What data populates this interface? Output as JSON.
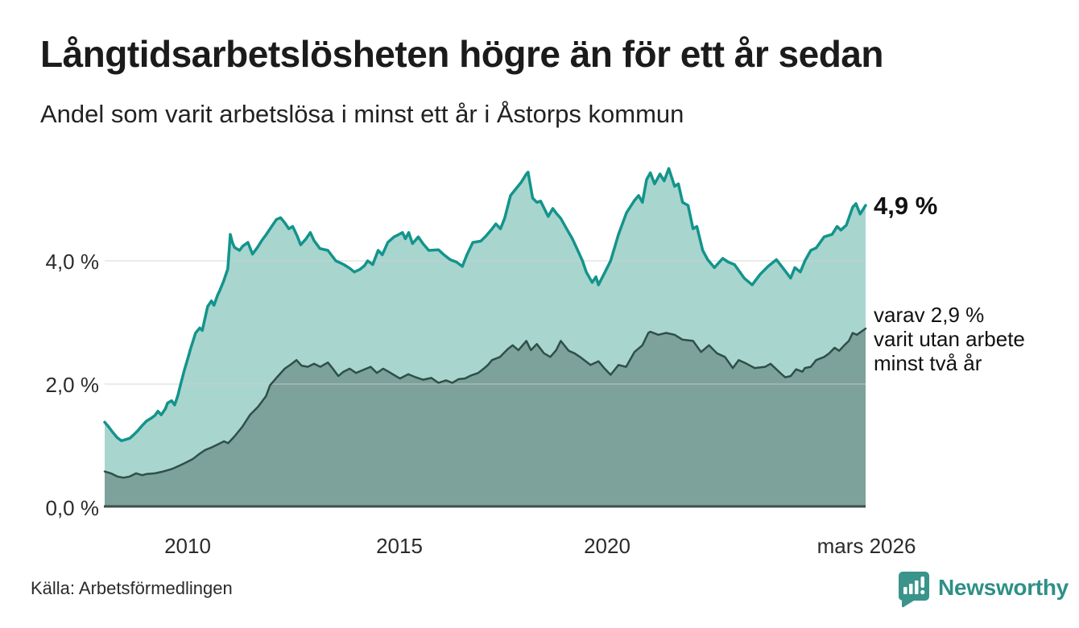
{
  "header": {
    "title": "Långtidsarbetslösheten högre än för ett år sedan",
    "subtitle": "Andel som varit arbetslösa i minst ett år i Åstorps kommun"
  },
  "chart_data": {
    "type": "area",
    "title": "Långtidsarbetslösheten högre än för ett år sedan",
    "subtitle": "Andel som varit arbetslösa i minst ett år i Åstorps kommun",
    "unit": "%",
    "x_range": [
      2008.0,
      2026.17
    ],
    "y_range": [
      0,
      5.8
    ],
    "grid_on": true,
    "grid_color": "#cfcfcf",
    "baseline_color": "#3e4e4a",
    "y_ticks": [
      {
        "label": "0,0 %",
        "value": 0
      },
      {
        "label": "2,0 %",
        "value": 2
      },
      {
        "label": "4,0 %",
        "value": 4
      }
    ],
    "x_ticks": [
      {
        "label": "2010",
        "value": 2010
      },
      {
        "label": "2015",
        "value": 2015
      },
      {
        "label": "2020",
        "value": 2020
      },
      {
        "label": "mars 2026",
        "value": 2026.17
      }
    ],
    "annotations": {
      "primary": {
        "text": "4,9 %"
      },
      "secondary": {
        "lines": [
          "varav 2,9 %",
          "varit utan arbete",
          "minst två år"
        ]
      }
    },
    "series": [
      {
        "name": "Andel arbetslösa minst ett år",
        "end_value": "4,9 %",
        "fill": "#a9d5cf",
        "stroke": "#13948b",
        "stroke_width": 3.5,
        "points": [
          [
            2008.0,
            1.38
          ],
          [
            2008.1,
            1.3
          ],
          [
            2008.2,
            1.21
          ],
          [
            2008.3,
            1.13
          ],
          [
            2008.4,
            1.08
          ],
          [
            2008.5,
            1.1
          ],
          [
            2008.6,
            1.12
          ],
          [
            2008.7,
            1.18
          ],
          [
            2008.8,
            1.25
          ],
          [
            2008.9,
            1.33
          ],
          [
            2009.0,
            1.4
          ],
          [
            2009.1,
            1.44
          ],
          [
            2009.2,
            1.49
          ],
          [
            2009.27,
            1.56
          ],
          [
            2009.35,
            1.5
          ],
          [
            2009.45,
            1.6
          ],
          [
            2009.5,
            1.69
          ],
          [
            2009.6,
            1.73
          ],
          [
            2009.67,
            1.66
          ],
          [
            2009.75,
            1.82
          ],
          [
            2009.8,
            1.96
          ],
          [
            2009.9,
            2.22
          ],
          [
            2010.0,
            2.45
          ],
          [
            2010.05,
            2.57
          ],
          [
            2010.17,
            2.83
          ],
          [
            2010.27,
            2.91
          ],
          [
            2010.33,
            2.87
          ],
          [
            2010.46,
            3.26
          ],
          [
            2010.55,
            3.35
          ],
          [
            2010.61,
            3.28
          ],
          [
            2010.7,
            3.45
          ],
          [
            2010.75,
            3.52
          ],
          [
            2010.84,
            3.67
          ],
          [
            2010.94,
            3.87
          ],
          [
            2011.0,
            4.43
          ],
          [
            2011.05,
            4.3
          ],
          [
            2011.1,
            4.22
          ],
          [
            2011.22,
            4.17
          ],
          [
            2011.3,
            4.24
          ],
          [
            2011.42,
            4.3
          ],
          [
            2011.53,
            4.11
          ],
          [
            2011.65,
            4.22
          ],
          [
            2011.76,
            4.34
          ],
          [
            2011.85,
            4.42
          ],
          [
            2011.95,
            4.52
          ],
          [
            2012.1,
            4.67
          ],
          [
            2012.2,
            4.7
          ],
          [
            2012.3,
            4.62
          ],
          [
            2012.4,
            4.52
          ],
          [
            2012.49,
            4.56
          ],
          [
            2012.6,
            4.4
          ],
          [
            2012.68,
            4.26
          ],
          [
            2012.8,
            4.35
          ],
          [
            2012.91,
            4.46
          ],
          [
            2013.0,
            4.33
          ],
          [
            2013.14,
            4.2
          ],
          [
            2013.33,
            4.17
          ],
          [
            2013.52,
            4.0
          ],
          [
            2013.71,
            3.94
          ],
          [
            2013.85,
            3.88
          ],
          [
            2013.96,
            3.82
          ],
          [
            2014.09,
            3.86
          ],
          [
            2014.2,
            3.92
          ],
          [
            2014.28,
            4.0
          ],
          [
            2014.4,
            3.94
          ],
          [
            2014.53,
            4.17
          ],
          [
            2014.63,
            4.1
          ],
          [
            2014.76,
            4.3
          ],
          [
            2014.91,
            4.39
          ],
          [
            2015.0,
            4.42
          ],
          [
            2015.11,
            4.46
          ],
          [
            2015.18,
            4.36
          ],
          [
            2015.26,
            4.46
          ],
          [
            2015.35,
            4.28
          ],
          [
            2015.49,
            4.39
          ],
          [
            2015.6,
            4.28
          ],
          [
            2015.74,
            4.17
          ],
          [
            2015.97,
            4.18
          ],
          [
            2016.1,
            4.1
          ],
          [
            2016.25,
            4.02
          ],
          [
            2016.4,
            3.98
          ],
          [
            2016.54,
            3.91
          ],
          [
            2016.65,
            4.1
          ],
          [
            2016.79,
            4.3
          ],
          [
            2016.98,
            4.32
          ],
          [
            2017.1,
            4.4
          ],
          [
            2017.25,
            4.52
          ],
          [
            2017.34,
            4.6
          ],
          [
            2017.45,
            4.52
          ],
          [
            2017.55,
            4.69
          ],
          [
            2017.69,
            5.06
          ],
          [
            2017.82,
            5.17
          ],
          [
            2017.95,
            5.28
          ],
          [
            2018.07,
            5.41
          ],
          [
            2018.11,
            5.44
          ],
          [
            2018.22,
            5.02
          ],
          [
            2018.32,
            4.95
          ],
          [
            2018.41,
            4.97
          ],
          [
            2018.59,
            4.72
          ],
          [
            2018.7,
            4.85
          ],
          [
            2018.8,
            4.76
          ],
          [
            2018.89,
            4.69
          ],
          [
            2019.03,
            4.52
          ],
          [
            2019.16,
            4.37
          ],
          [
            2019.27,
            4.21
          ],
          [
            2019.41,
            4.0
          ],
          [
            2019.5,
            3.82
          ],
          [
            2019.64,
            3.65
          ],
          [
            2019.73,
            3.74
          ],
          [
            2019.79,
            3.61
          ],
          [
            2019.92,
            3.78
          ],
          [
            2020.08,
            4.0
          ],
          [
            2020.27,
            4.43
          ],
          [
            2020.46,
            4.78
          ],
          [
            2020.65,
            4.98
          ],
          [
            2020.75,
            5.06
          ],
          [
            2020.84,
            4.95
          ],
          [
            2020.94,
            5.32
          ],
          [
            2021.03,
            5.43
          ],
          [
            2021.13,
            5.25
          ],
          [
            2021.26,
            5.41
          ],
          [
            2021.36,
            5.3
          ],
          [
            2021.47,
            5.5
          ],
          [
            2021.61,
            5.21
          ],
          [
            2021.7,
            5.25
          ],
          [
            2021.8,
            4.95
          ],
          [
            2021.93,
            4.9
          ],
          [
            2022.05,
            4.52
          ],
          [
            2022.14,
            4.56
          ],
          [
            2022.28,
            4.17
          ],
          [
            2022.4,
            4.02
          ],
          [
            2022.56,
            3.89
          ],
          [
            2022.76,
            4.04
          ],
          [
            2022.89,
            3.98
          ],
          [
            2023.04,
            3.94
          ],
          [
            2023.27,
            3.72
          ],
          [
            2023.46,
            3.61
          ],
          [
            2023.65,
            3.78
          ],
          [
            2023.84,
            3.91
          ],
          [
            2024.04,
            4.02
          ],
          [
            2024.19,
            3.89
          ],
          [
            2024.38,
            3.72
          ],
          [
            2024.48,
            3.89
          ],
          [
            2024.61,
            3.82
          ],
          [
            2024.72,
            4.0
          ],
          [
            2024.86,
            4.17
          ],
          [
            2024.99,
            4.21
          ],
          [
            2025.18,
            4.39
          ],
          [
            2025.37,
            4.43
          ],
          [
            2025.49,
            4.56
          ],
          [
            2025.58,
            4.5
          ],
          [
            2025.71,
            4.58
          ],
          [
            2025.86,
            4.87
          ],
          [
            2025.94,
            4.93
          ],
          [
            2026.04,
            4.76
          ],
          [
            2026.17,
            4.9
          ]
        ]
      },
      {
        "name": "Varav utan arbete minst två år",
        "end_value": "2,9 %",
        "fill": "#7da19b",
        "stroke": "#2e5049",
        "stroke_width": 2.5,
        "points": [
          [
            2008.0,
            0.58
          ],
          [
            2008.15,
            0.55
          ],
          [
            2008.3,
            0.5
          ],
          [
            2008.45,
            0.48
          ],
          [
            2008.6,
            0.5
          ],
          [
            2008.75,
            0.55
          ],
          [
            2008.9,
            0.52
          ],
          [
            2009.0,
            0.54
          ],
          [
            2009.2,
            0.55
          ],
          [
            2009.4,
            0.58
          ],
          [
            2009.6,
            0.62
          ],
          [
            2009.8,
            0.68
          ],
          [
            2009.95,
            0.73
          ],
          [
            2010.1,
            0.78
          ],
          [
            2010.25,
            0.86
          ],
          [
            2010.4,
            0.93
          ],
          [
            2010.55,
            0.97
          ],
          [
            2010.7,
            1.02
          ],
          [
            2010.85,
            1.07
          ],
          [
            2010.95,
            1.04
          ],
          [
            2011.1,
            1.15
          ],
          [
            2011.28,
            1.3
          ],
          [
            2011.47,
            1.5
          ],
          [
            2011.66,
            1.63
          ],
          [
            2011.85,
            1.8
          ],
          [
            2011.95,
            1.98
          ],
          [
            2012.1,
            2.1
          ],
          [
            2012.3,
            2.25
          ],
          [
            2012.45,
            2.32
          ],
          [
            2012.58,
            2.39
          ],
          [
            2012.7,
            2.3
          ],
          [
            2012.85,
            2.28
          ],
          [
            2013.0,
            2.33
          ],
          [
            2013.15,
            2.28
          ],
          [
            2013.33,
            2.35
          ],
          [
            2013.45,
            2.25
          ],
          [
            2013.58,
            2.13
          ],
          [
            2013.7,
            2.2
          ],
          [
            2013.85,
            2.25
          ],
          [
            2014.0,
            2.18
          ],
          [
            2014.21,
            2.24
          ],
          [
            2014.35,
            2.28
          ],
          [
            2014.5,
            2.18
          ],
          [
            2014.65,
            2.25
          ],
          [
            2014.78,
            2.2
          ],
          [
            2014.9,
            2.15
          ],
          [
            2015.05,
            2.09
          ],
          [
            2015.25,
            2.16
          ],
          [
            2015.43,
            2.11
          ],
          [
            2015.6,
            2.07
          ],
          [
            2015.8,
            2.1
          ],
          [
            2015.97,
            2.02
          ],
          [
            2016.15,
            2.06
          ],
          [
            2016.3,
            2.02
          ],
          [
            2016.45,
            2.08
          ],
          [
            2016.6,
            2.09
          ],
          [
            2016.75,
            2.14
          ],
          [
            2016.92,
            2.18
          ],
          [
            2017.05,
            2.25
          ],
          [
            2017.15,
            2.31
          ],
          [
            2017.25,
            2.39
          ],
          [
            2017.44,
            2.44
          ],
          [
            2017.63,
            2.57
          ],
          [
            2017.74,
            2.63
          ],
          [
            2017.88,
            2.55
          ],
          [
            2018.07,
            2.7
          ],
          [
            2018.18,
            2.55
          ],
          [
            2018.32,
            2.65
          ],
          [
            2018.49,
            2.5
          ],
          [
            2018.64,
            2.44
          ],
          [
            2018.78,
            2.55
          ],
          [
            2018.89,
            2.7
          ],
          [
            2019.08,
            2.54
          ],
          [
            2019.22,
            2.5
          ],
          [
            2019.35,
            2.44
          ],
          [
            2019.6,
            2.31
          ],
          [
            2019.79,
            2.37
          ],
          [
            2019.94,
            2.25
          ],
          [
            2020.08,
            2.15
          ],
          [
            2020.27,
            2.31
          ],
          [
            2020.45,
            2.28
          ],
          [
            2020.65,
            2.52
          ],
          [
            2020.84,
            2.63
          ],
          [
            2020.98,
            2.83
          ],
          [
            2021.03,
            2.85
          ],
          [
            2021.22,
            2.8
          ],
          [
            2021.41,
            2.83
          ],
          [
            2021.61,
            2.8
          ],
          [
            2021.8,
            2.72
          ],
          [
            2022.05,
            2.7
          ],
          [
            2022.24,
            2.52
          ],
          [
            2022.43,
            2.63
          ],
          [
            2022.62,
            2.5
          ],
          [
            2022.81,
            2.44
          ],
          [
            2023.0,
            2.26
          ],
          [
            2023.14,
            2.39
          ],
          [
            2023.33,
            2.33
          ],
          [
            2023.52,
            2.26
          ],
          [
            2023.77,
            2.28
          ],
          [
            2023.9,
            2.33
          ],
          [
            2024.15,
            2.17
          ],
          [
            2024.25,
            2.11
          ],
          [
            2024.38,
            2.13
          ],
          [
            2024.51,
            2.24
          ],
          [
            2024.66,
            2.2
          ],
          [
            2024.72,
            2.26
          ],
          [
            2024.86,
            2.28
          ],
          [
            2024.99,
            2.39
          ],
          [
            2025.18,
            2.44
          ],
          [
            2025.3,
            2.5
          ],
          [
            2025.43,
            2.59
          ],
          [
            2025.54,
            2.54
          ],
          [
            2025.66,
            2.63
          ],
          [
            2025.77,
            2.7
          ],
          [
            2025.86,
            2.83
          ],
          [
            2025.96,
            2.8
          ],
          [
            2026.17,
            2.9
          ]
        ]
      }
    ]
  },
  "footer": {
    "source": "Källa: Arbetsförmedlingen",
    "brand": "Newsworthy",
    "brand_color": "#2e9087"
  }
}
